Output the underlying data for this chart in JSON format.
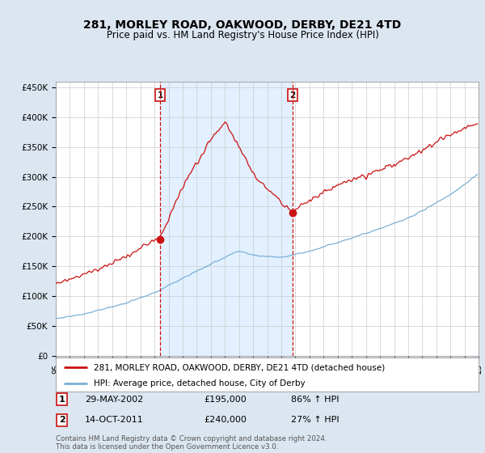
{
  "title": "281, MORLEY ROAD, OAKWOOD, DERBY, DE21 4TD",
  "subtitle": "Price paid vs. HM Land Registry's House Price Index (HPI)",
  "ylabel_ticks": [
    "£0",
    "£50K",
    "£100K",
    "£150K",
    "£200K",
    "£250K",
    "£300K",
    "£350K",
    "£400K",
    "£450K"
  ],
  "ytick_values": [
    0,
    50000,
    100000,
    150000,
    200000,
    250000,
    300000,
    350000,
    400000,
    450000
  ],
  "ylim": [
    0,
    460000
  ],
  "sale1_year": 2002.41,
  "sale1_price": 195000,
  "sale1_label": "1",
  "sale1_date": "29-MAY-2002",
  "sale1_hpi_pct": "86%",
  "sale2_year": 2011.79,
  "sale2_price": 240000,
  "sale2_label": "2",
  "sale2_date": "14-OCT-2011",
  "sale2_hpi_pct": "27%",
  "hpi_color": "#7bafd4",
  "price_color": "#cc1111",
  "shade_color": "#ddeeff",
  "background_color": "#dce6f1",
  "plot_bg_color": "#ffffff",
  "legend_label_price": "281, MORLEY ROAD, OAKWOOD, DERBY, DE21 4TD (detached house)",
  "legend_label_hpi": "HPI: Average price, detached house, City of Derby",
  "footer": "Contains HM Land Registry data © Crown copyright and database right 2024.\nThis data is licensed under the Open Government Licence v3.0.",
  "xstart": 1995,
  "xend": 2025
}
